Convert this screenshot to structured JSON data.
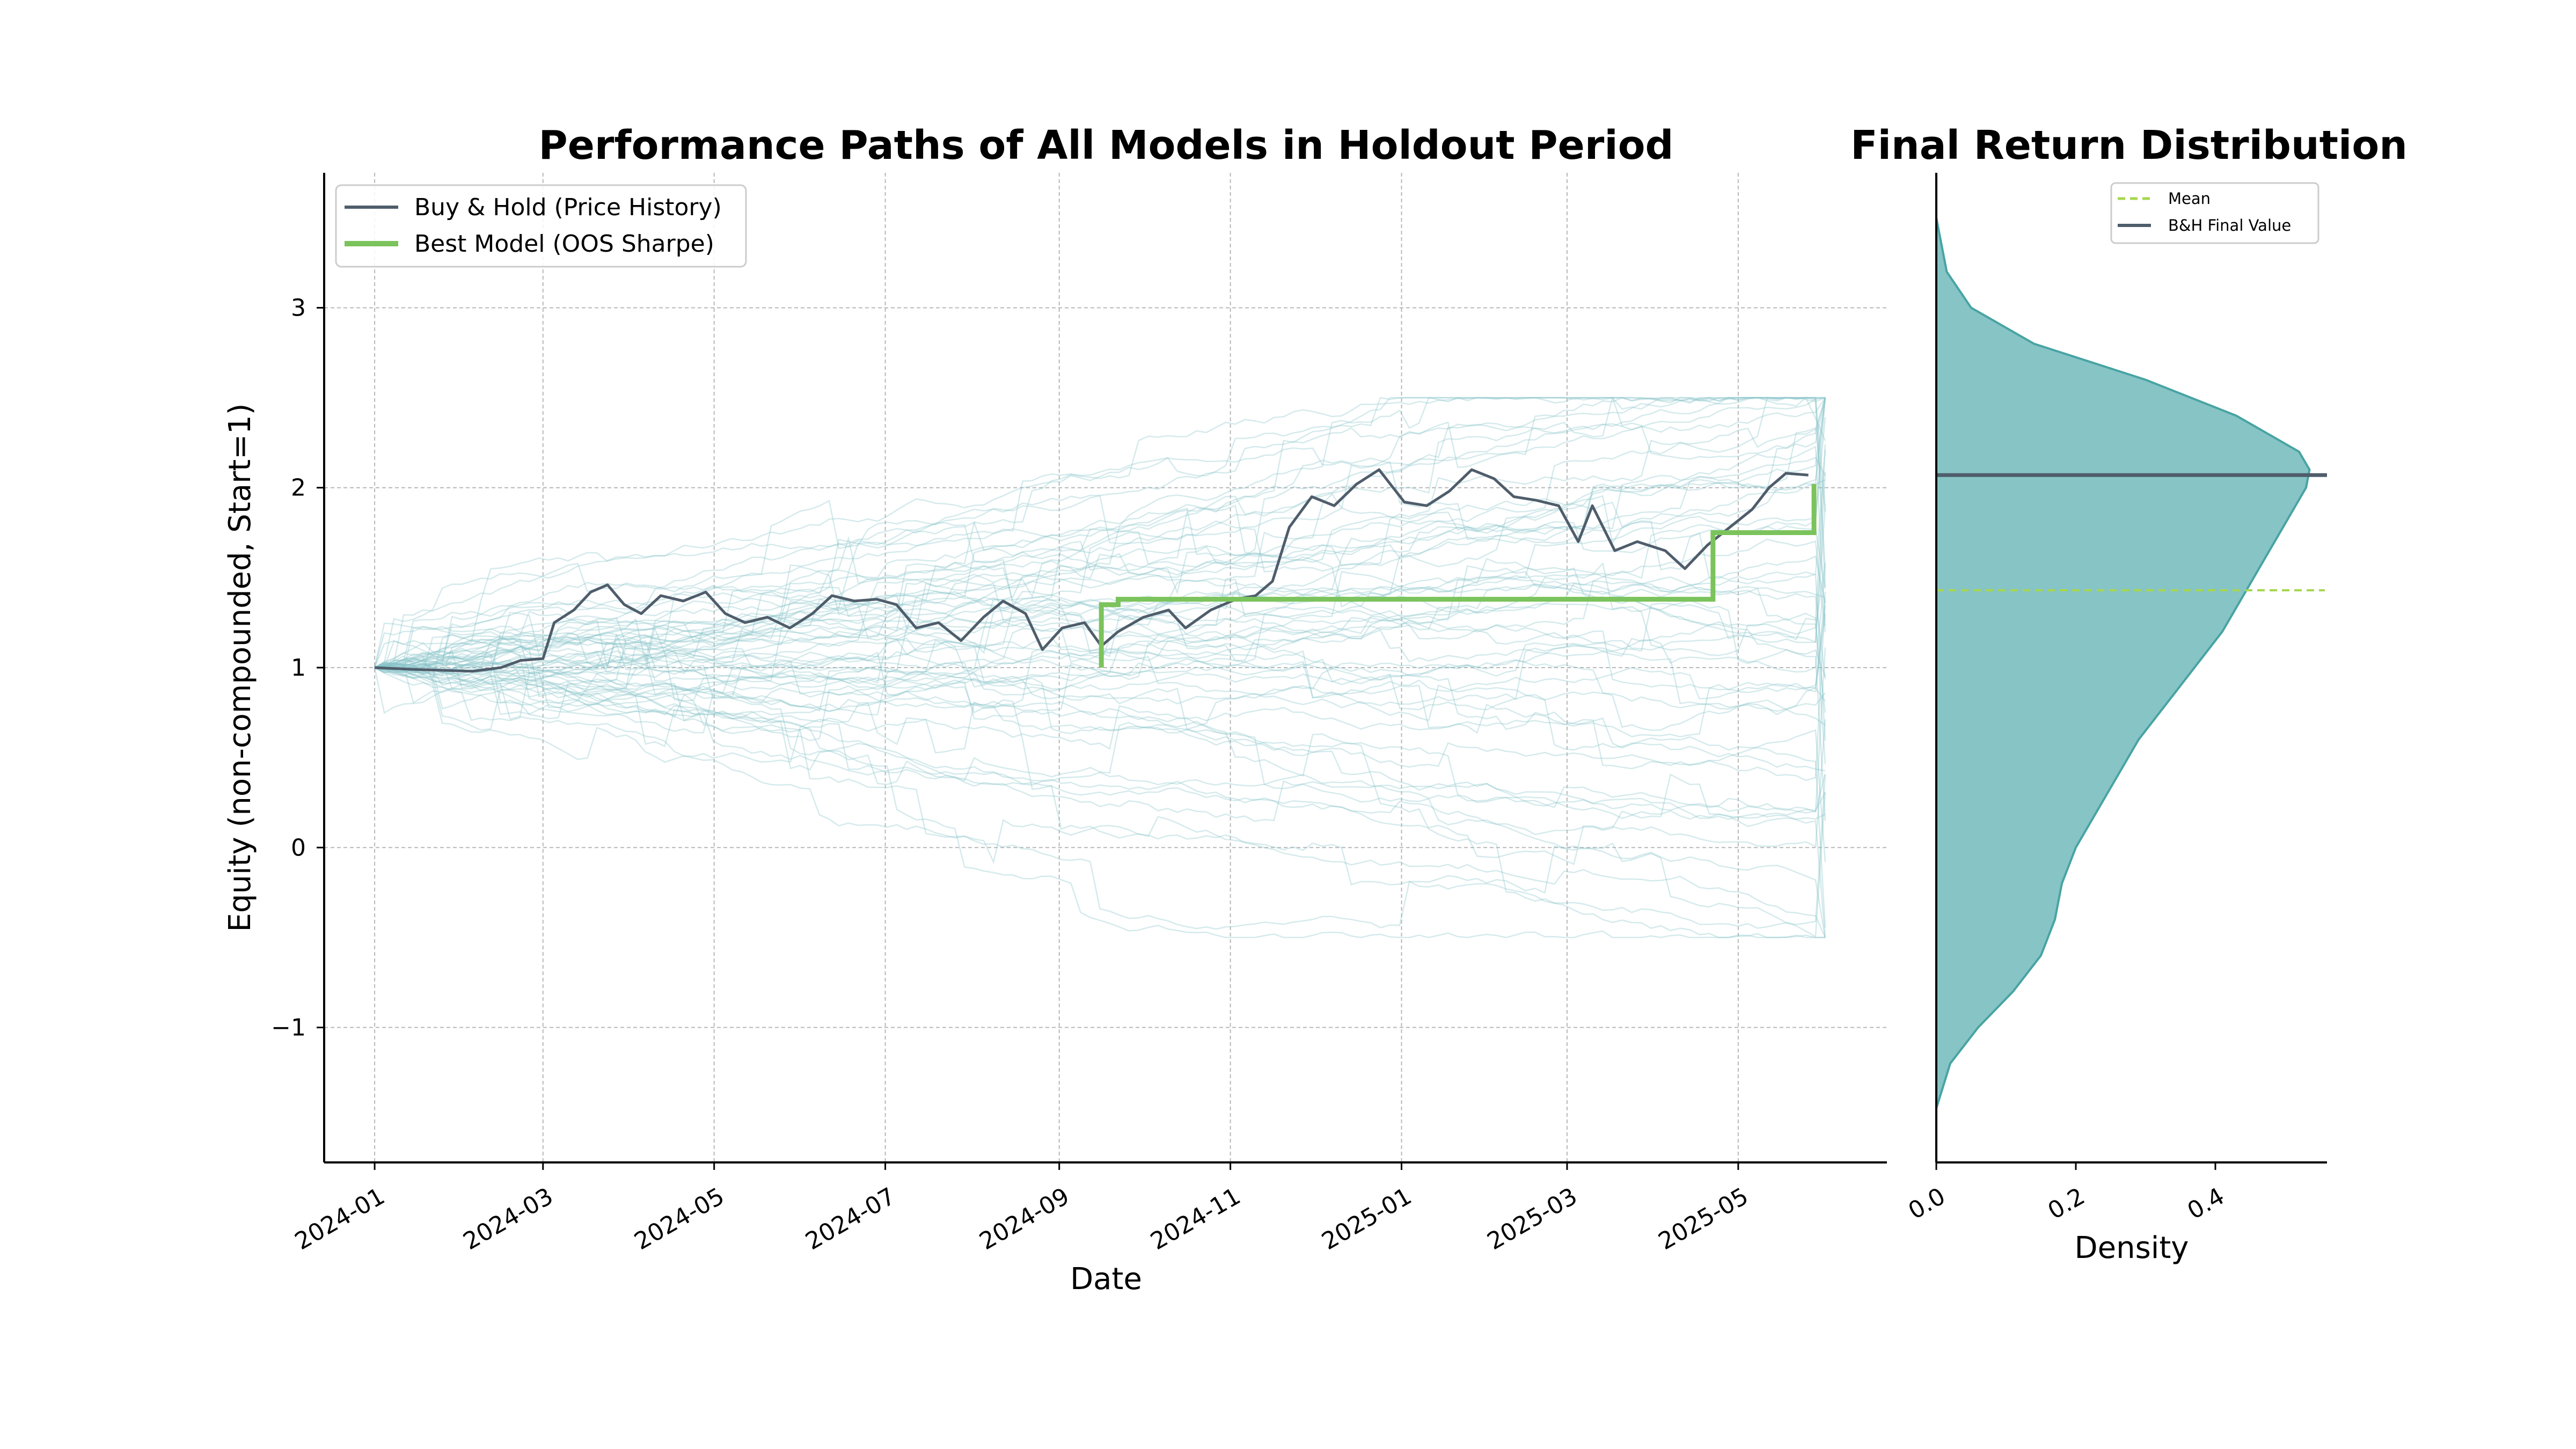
{
  "chart_data": [
    {
      "type": "line",
      "title": "Performance Paths of All Models in Holdout Period",
      "xlabel": "Date",
      "ylabel": "Equity (non-compounded, Start=1)",
      "x_tick_labels": [
        "2024-01",
        "2024-03",
        "2024-05",
        "2024-07",
        "2024-09",
        "2024-11",
        "2025-01",
        "2025-03",
        "2025-05"
      ],
      "x_range": [
        "2023-12-14",
        "2025-06-23"
      ],
      "y_ticks": [
        -1,
        0,
        1,
        2,
        3
      ],
      "y_tick_labels": [
        "−1",
        "0",
        "1",
        "2",
        "3"
      ],
      "ylim": [
        -1.75,
        3.75
      ],
      "grid": true,
      "legend_position": "top-left",
      "colors": {
        "buy_hold": "#4f5d6b",
        "best_model": "#7bc35c",
        "model_paths": "#87c4c9"
      },
      "series": [
        {
          "name": "Buy & Hold (Price History)",
          "points": [
            [
              "2024-01-01",
              1.0
            ],
            [
              "2024-01-15",
              0.99
            ],
            [
              "2024-02-05",
              0.98
            ],
            [
              "2024-02-15",
              1.0
            ],
            [
              "2024-02-22",
              1.04
            ],
            [
              "2024-03-01",
              1.05
            ],
            [
              "2024-03-05",
              1.25
            ],
            [
              "2024-03-12",
              1.32
            ],
            [
              "2024-03-18",
              1.42
            ],
            [
              "2024-03-24",
              1.46
            ],
            [
              "2024-03-30",
              1.35
            ],
            [
              "2024-04-05",
              1.3
            ],
            [
              "2024-04-12",
              1.4
            ],
            [
              "2024-04-20",
              1.37
            ],
            [
              "2024-04-28",
              1.42
            ],
            [
              "2024-05-05",
              1.3
            ],
            [
              "2024-05-12",
              1.25
            ],
            [
              "2024-05-20",
              1.28
            ],
            [
              "2024-05-28",
              1.22
            ],
            [
              "2024-06-05",
              1.3
            ],
            [
              "2024-06-12",
              1.4
            ],
            [
              "2024-06-20",
              1.37
            ],
            [
              "2024-06-28",
              1.38
            ],
            [
              "2024-07-05",
              1.35
            ],
            [
              "2024-07-12",
              1.22
            ],
            [
              "2024-07-20",
              1.25
            ],
            [
              "2024-07-28",
              1.15
            ],
            [
              "2024-08-05",
              1.28
            ],
            [
              "2024-08-12",
              1.37
            ],
            [
              "2024-08-20",
              1.3
            ],
            [
              "2024-08-26",
              1.1
            ],
            [
              "2024-09-02",
              1.22
            ],
            [
              "2024-09-10",
              1.25
            ],
            [
              "2024-09-16",
              1.12
            ],
            [
              "2024-09-22",
              1.2
            ],
            [
              "2024-10-01",
              1.28
            ],
            [
              "2024-10-10",
              1.32
            ],
            [
              "2024-10-16",
              1.22
            ],
            [
              "2024-10-25",
              1.32
            ],
            [
              "2024-11-03",
              1.38
            ],
            [
              "2024-11-10",
              1.4
            ],
            [
              "2024-11-16",
              1.48
            ],
            [
              "2024-11-22",
              1.78
            ],
            [
              "2024-11-30",
              1.95
            ],
            [
              "2024-12-08",
              1.9
            ],
            [
              "2024-12-16",
              2.02
            ],
            [
              "2024-12-24",
              2.1
            ],
            [
              "2025-01-02",
              1.92
            ],
            [
              "2025-01-10",
              1.9
            ],
            [
              "2025-01-18",
              1.98
            ],
            [
              "2025-01-26",
              2.1
            ],
            [
              "2025-02-03",
              2.05
            ],
            [
              "2025-02-10",
              1.95
            ],
            [
              "2025-02-18",
              1.93
            ],
            [
              "2025-02-26",
              1.9
            ],
            [
              "2025-03-05",
              1.7
            ],
            [
              "2025-03-10",
              1.9
            ],
            [
              "2025-03-18",
              1.65
            ],
            [
              "2025-03-26",
              1.7
            ],
            [
              "2025-04-05",
              1.65
            ],
            [
              "2025-04-12",
              1.55
            ],
            [
              "2025-04-20",
              1.68
            ],
            [
              "2025-04-28",
              1.78
            ],
            [
              "2025-05-06",
              1.88
            ],
            [
              "2025-05-12",
              2.0
            ],
            [
              "2025-05-18",
              2.08
            ],
            [
              "2025-05-26",
              2.07
            ]
          ]
        },
        {
          "name": "Best Model (OOS Sharpe)",
          "points": [
            [
              "2024-09-16",
              1.0
            ],
            [
              "2024-09-16",
              1.35
            ],
            [
              "2024-09-22",
              1.35
            ],
            [
              "2024-09-22",
              1.38
            ],
            [
              "2025-04-22",
              1.38
            ],
            [
              "2025-04-22",
              1.75
            ],
            [
              "2025-05-28",
              1.75
            ],
            [
              "2025-05-28",
              2.02
            ]
          ]
        }
      ],
      "model_paths_count": 60,
      "model_paths_end": "2025-06-01"
    },
    {
      "type": "area",
      "title": "Final Return Distribution",
      "xlabel": "Density",
      "x_ticks": [
        0.0,
        0.2,
        0.4
      ],
      "x_tick_labels": [
        "0.0",
        "0.2",
        "0.4"
      ],
      "xlim": [
        0.0,
        0.56
      ],
      "shared_y_with_left": true,
      "density_curve": [
        [
          -1.45,
          0.0
        ],
        [
          -1.2,
          0.02
        ],
        [
          -1.0,
          0.06
        ],
        [
          -0.8,
          0.11
        ],
        [
          -0.6,
          0.15
        ],
        [
          -0.4,
          0.17
        ],
        [
          -0.2,
          0.18
        ],
        [
          0.0,
          0.2
        ],
        [
          0.2,
          0.23
        ],
        [
          0.4,
          0.26
        ],
        [
          0.6,
          0.29
        ],
        [
          0.8,
          0.33
        ],
        [
          1.0,
          0.37
        ],
        [
          1.2,
          0.41
        ],
        [
          1.4,
          0.44
        ],
        [
          1.6,
          0.47
        ],
        [
          1.8,
          0.5
        ],
        [
          2.0,
          0.53
        ],
        [
          2.1,
          0.535
        ],
        [
          2.2,
          0.52
        ],
        [
          2.4,
          0.43
        ],
        [
          2.6,
          0.3
        ],
        [
          2.8,
          0.14
        ],
        [
          3.0,
          0.05
        ],
        [
          3.2,
          0.015
        ],
        [
          3.5,
          0.0
        ]
      ],
      "mean": 1.43,
      "bh_final_value": 2.07,
      "colors": {
        "fill": "#87c4c5",
        "edge": "#48a3a3",
        "mean_line": "#a6d64e",
        "bh_line": "#4f5d6b"
      },
      "legend_position": "top-right",
      "legend": [
        "Mean",
        "B&H Final Value"
      ]
    }
  ]
}
